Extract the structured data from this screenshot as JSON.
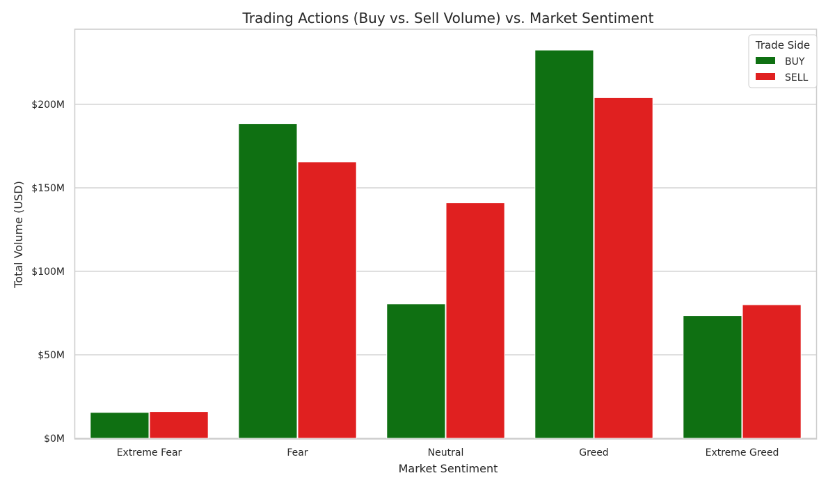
{
  "chart_data": {
    "type": "bar",
    "title": "Trading Actions (Buy vs. Sell Volume) vs. Market Sentiment",
    "xlabel": "Market Sentiment",
    "ylabel": "Total Volume (USD)",
    "categories": [
      "Extreme Fear",
      "Fear",
      "Neutral",
      "Greed",
      "Extreme Greed"
    ],
    "series": [
      {
        "name": "BUY",
        "color": "#0f7012",
        "values": [
          15.5,
          188.5,
          80.5,
          232.5,
          73.5
        ]
      },
      {
        "name": "SELL",
        "color": "#e02020",
        "values": [
          16,
          165.5,
          141,
          204,
          80
        ]
      }
    ],
    "value_unit": "millions USD",
    "ylim": [
      0,
      245
    ],
    "yticks": [
      0,
      50,
      100,
      150,
      200
    ],
    "ytick_labels": [
      "$0M",
      "$50M",
      "$100M",
      "$150M",
      "$200M"
    ],
    "grid": "horizontal",
    "legend": {
      "title": "Trade Side",
      "position": "top-right"
    }
  }
}
